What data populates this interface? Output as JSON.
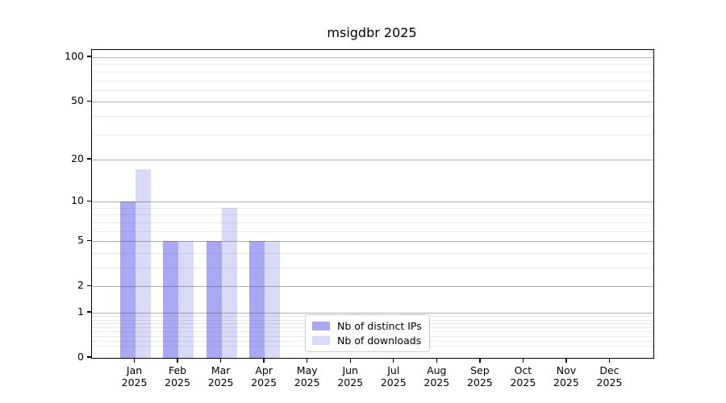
{
  "chart_data": {
    "type": "bar",
    "title": "msigdbr 2025",
    "categories": [
      "Jan",
      "Feb",
      "Mar",
      "Apr",
      "May",
      "Jun",
      "Jul",
      "Aug",
      "Sep",
      "Oct",
      "Nov",
      "Dec"
    ],
    "category_year": "2025",
    "series": [
      {
        "name": "Nb of distinct IPs",
        "color": "#a8a8f5",
        "values": [
          10,
          5,
          5,
          5,
          0,
          0,
          0,
          0,
          0,
          0,
          0,
          0
        ]
      },
      {
        "name": "Nb of downloads",
        "color": "#d9d9f8",
        "values": [
          17,
          5,
          9,
          5,
          0,
          0,
          0,
          0,
          0,
          0,
          0,
          0
        ]
      }
    ],
    "yscale": "log1p",
    "yticks": [
      100,
      50,
      20,
      10,
      5,
      2,
      1,
      0
    ],
    "minor_yticks": [
      0.2,
      0.3,
      0.4,
      0.5,
      0.6,
      0.7,
      0.8,
      0.9,
      3,
      4,
      6,
      7,
      8,
      9,
      30,
      40,
      60,
      70,
      80,
      90
    ],
    "ylim": [
      0,
      112
    ],
    "grid": true,
    "legend_position": "inside lower center",
    "colors": {
      "grid_major": "rgba(80,80,80,0.45)",
      "grid_minor": "rgba(80,80,80,0.12)",
      "spine": "#000000",
      "text": "#000000"
    }
  }
}
